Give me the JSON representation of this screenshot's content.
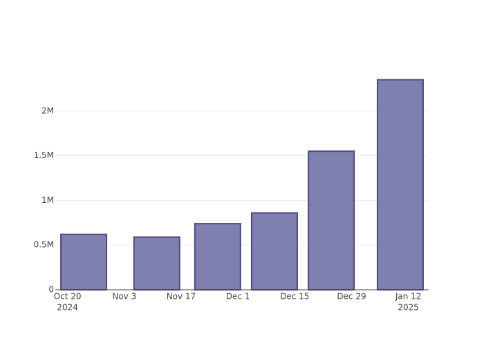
{
  "chart_data": {
    "type": "bar",
    "x": [
      "2024-10-24",
      "2024-11-11",
      "2024-11-26",
      "2024-12-10",
      "2024-12-24",
      "2025-01-10"
    ],
    "values": [
      620000,
      590000,
      740000,
      860000,
      1550000,
      2350000
    ],
    "color": "#8080b0",
    "line_color": "#4a4a7e",
    "xlim": [
      "2024-10-17",
      "2025-01-17"
    ],
    "xticks": [
      {
        "value": "2024-10-20",
        "label": [
          "Oct 20",
          "2024"
        ]
      },
      {
        "value": "2024-11-03",
        "label": [
          "Nov 3"
        ]
      },
      {
        "value": "2024-11-17",
        "label": [
          "Nov 17"
        ]
      },
      {
        "value": "2024-12-01",
        "label": [
          "Dec 1"
        ]
      },
      {
        "value": "2024-12-15",
        "label": [
          "Dec 15"
        ]
      },
      {
        "value": "2024-12-29",
        "label": [
          "Dec 29"
        ]
      },
      {
        "value": "2025-01-12",
        "label": [
          "Jan 12",
          "2025"
        ]
      }
    ],
    "ylim": [
      0,
      2470000
    ],
    "yticks": [
      0,
      {
        "value": 500000,
        "label": "0.5M"
      },
      {
        "value": 1000000,
        "label": "1M"
      },
      {
        "value": 1500000,
        "label": "1.5M"
      },
      {
        "value": 2000000,
        "label": "2M"
      }
    ],
    "grid": true
  }
}
